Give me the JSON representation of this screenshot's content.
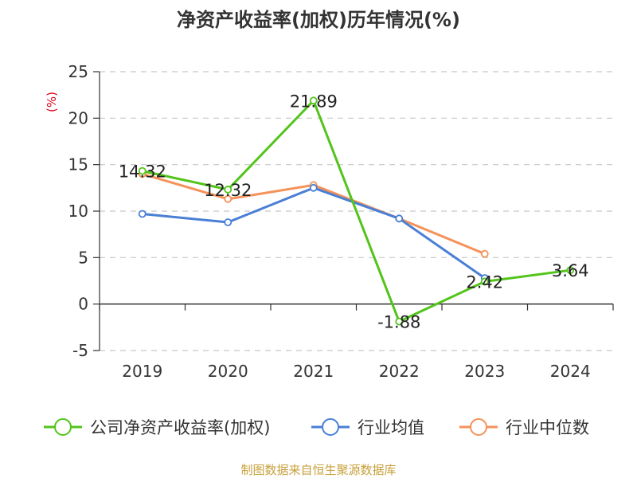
{
  "chart_data": {
    "type": "line",
    "title": "净资产收益率(加权)历年情况(%)",
    "ylabel": "(%)",
    "xlabel": "",
    "categories": [
      "2019",
      "2020",
      "2021",
      "2022",
      "2023",
      "2024"
    ],
    "ylim": [
      -5,
      25
    ],
    "yticks": [
      -5,
      0,
      5,
      10,
      15,
      20,
      25
    ],
    "grid": true,
    "legend_position": "bottom",
    "series": [
      {
        "name": "公司净资产收益率(加权)",
        "color": "#52c41a",
        "values": [
          14.32,
          12.32,
          21.89,
          -1.88,
          2.42,
          3.64
        ],
        "show_labels": true
      },
      {
        "name": "行业均值",
        "color": "#4a7fd6",
        "values": [
          9.7,
          8.8,
          12.5,
          9.2,
          2.8,
          null
        ],
        "show_labels": false
      },
      {
        "name": "行业中位数",
        "color": "#f4925a",
        "values": [
          14.0,
          11.3,
          12.8,
          9.2,
          5.4,
          null
        ],
        "show_labels": false
      }
    ],
    "data_labels": [
      "14.32",
      "12.32",
      "21.89",
      "-1.88",
      "2.42",
      "3.64"
    ]
  },
  "source": "制图数据来自恒生聚源数据库"
}
